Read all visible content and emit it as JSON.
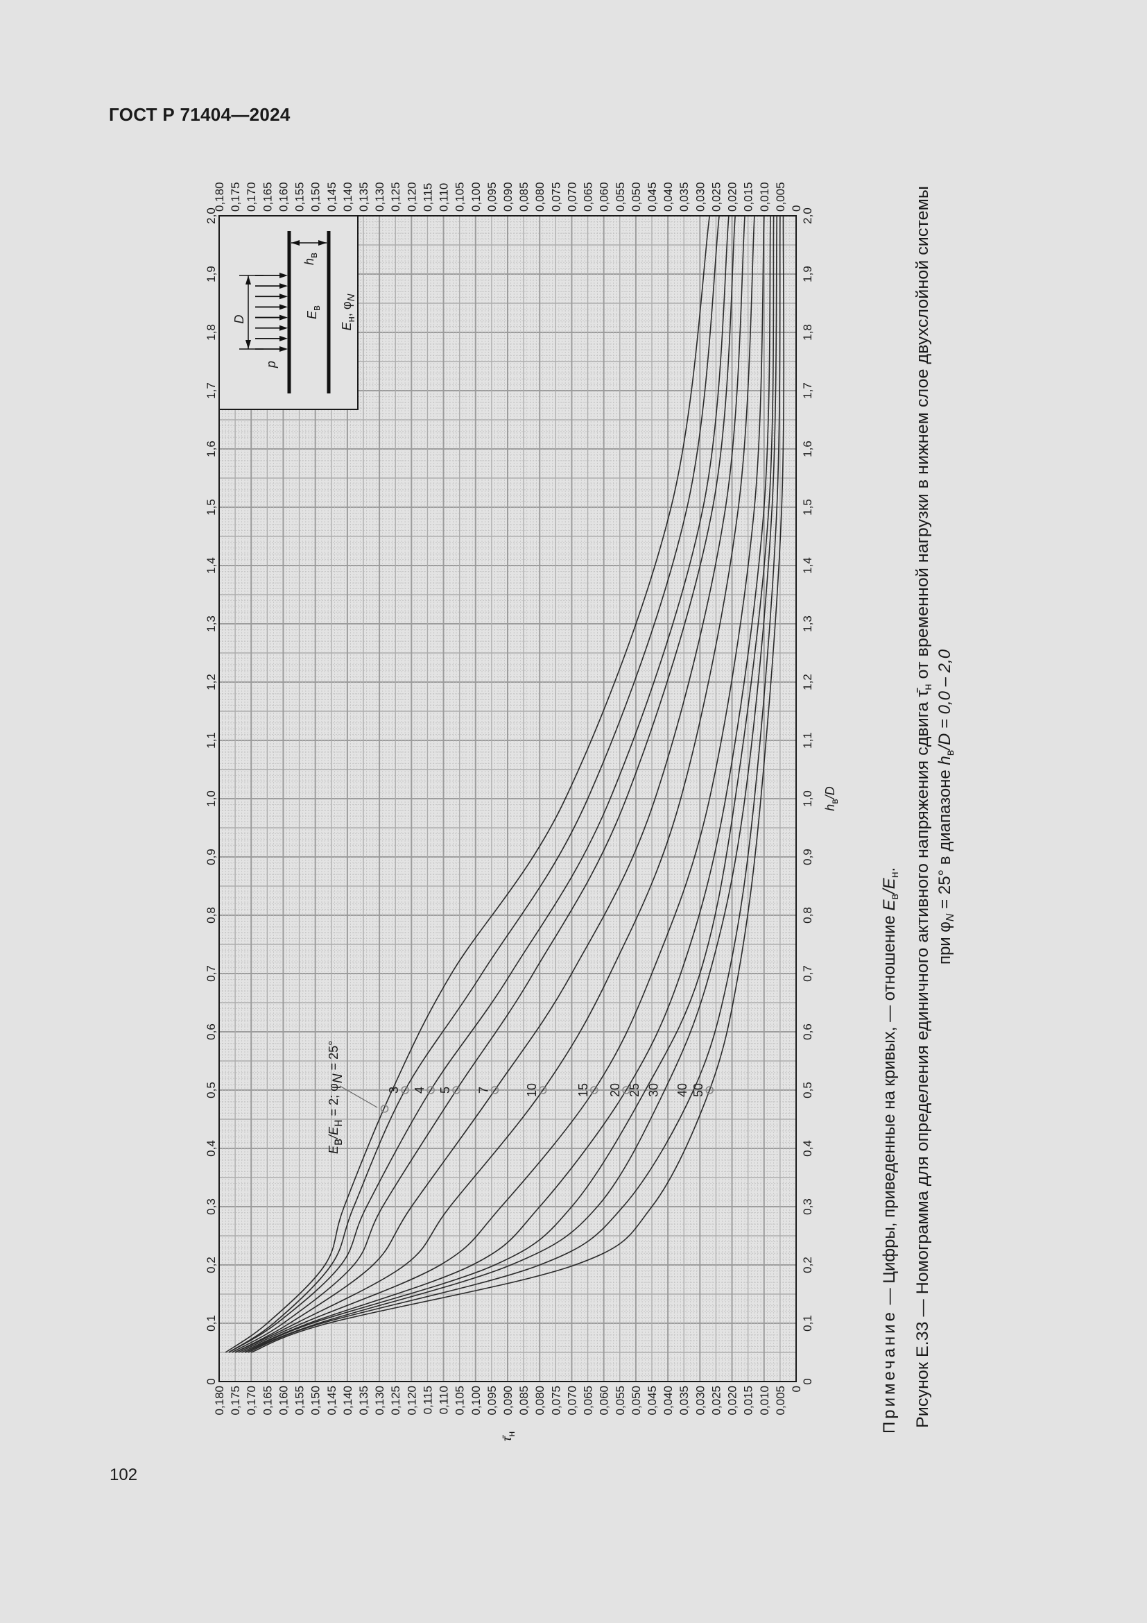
{
  "header": {
    "doc_id": "ГОСТ Р 71404—2024"
  },
  "page_number": "102",
  "colors": {
    "background": "#e3e3e3",
    "curve": "#2a2a2a",
    "grid_major": "#9c9c9c",
    "grid_minor": "#c2c2c2",
    "marker": "#888888"
  },
  "inset": {
    "p": "p",
    "D": "D",
    "h": "h",
    "h_sub": "в",
    "Eb": "E",
    "Eb_sub": "в",
    "En": "E",
    "En_sub": "н",
    "phi": ", φ",
    "phi_sub": "N"
  },
  "annotation": {
    "E1": "E",
    "E1_sub": "в",
    "E2": "/E",
    "E2_sub": "н",
    "eq": " = 2; φ",
    "phi_sub": "N",
    "tail": " = 25°"
  },
  "caption": {
    "note_label": "Примечание",
    "note_text": " — Цифры, приведенные на кривых, — отношение ",
    "note_E1": "E",
    "note_E1_sub": "в",
    "note_E2": "/E",
    "note_E2_sub": "н",
    "note_end": ".",
    "fig_a": "Рисунок Е.33 — Номограмма для определения единичного активного напряжения сдвига ",
    "fig_tau": "τ̄",
    "fig_tau_sub": "н",
    "fig_b": " от временной нагрузки в нижнем слое двухслойной системы",
    "fig_c1": "при φ",
    "fig_c1_sub": "N",
    "fig_c2": " = 25° в диапазоне ",
    "fig_c3": "h",
    "fig_c3_sub": "в",
    "fig_c4": "/D = 0,0 – 2,0"
  },
  "chart_data": {
    "type": "line",
    "title": "",
    "xlabel": "h_в/D",
    "xlabel_main": "h",
    "xlabel_sub": "в",
    "xlabel_tail": "/D",
    "ylabel": "τ̄_н",
    "ylabel_main": "τ̄",
    "ylabel_sub": "н",
    "xlim": [
      0,
      2.0
    ],
    "ylim": [
      0,
      0.18
    ],
    "grid": true,
    "x_ticks": [
      "0",
      "0,1",
      "0,2",
      "0,3",
      "0,4",
      "0,5",
      "0,6",
      "0,7",
      "0,8",
      "0,9",
      "1,0",
      "1,1",
      "1,2",
      "1,3",
      "1,4",
      "1,5",
      "1,6",
      "1,7",
      "1,8",
      "1,9",
      "2,0"
    ],
    "y_ticks": [
      "0",
      "0,005",
      "0,010",
      "0,015",
      "0,020",
      "0,025",
      "0,030",
      "0,035",
      "0,040",
      "0,045",
      "0,050",
      "0,055",
      "0,060",
      "0,065",
      "0,070",
      "0,075",
      "0,080",
      "0,085",
      "0,090",
      "0,095",
      "0,100",
      "0,105",
      "0,110",
      "0,115",
      "0,120",
      "0,125",
      "0,130",
      "0,135",
      "0,140",
      "0,145",
      "0,150",
      "0,155",
      "0,160",
      "0,165",
      "0,170",
      "0,175",
      "0,180"
    ],
    "x": [
      0.05,
      0.1,
      0.2,
      0.3,
      0.5,
      0.7,
      1.0,
      1.5,
      2.0
    ],
    "marker_x": 0.5,
    "series": [
      {
        "name": "2",
        "values": [
          0.178,
          0.165,
          0.147,
          0.141,
          0.126,
          0.1075,
          0.072,
          0.039,
          0.027
        ],
        "marker_x": 0.468
      },
      {
        "name": "3",
        "values": [
          0.177,
          0.163,
          0.145,
          0.138,
          0.122,
          0.098,
          0.065,
          0.034,
          0.024
        ]
      },
      {
        "name": "4",
        "values": [
          0.177,
          0.162,
          0.142,
          0.134,
          0.114,
          0.089,
          0.058,
          0.029,
          0.021
        ]
      },
      {
        "name": "5",
        "values": [
          0.176,
          0.16,
          0.138,
          0.129,
          0.106,
          0.082,
          0.053,
          0.026,
          0.019
        ]
      },
      {
        "name": "7",
        "values": [
          0.175,
          0.158,
          0.132,
          0.12,
          0.094,
          0.07,
          0.044,
          0.022,
          0.016
        ]
      },
      {
        "name": "10",
        "values": [
          0.175,
          0.156,
          0.122,
          0.108,
          0.079,
          0.058,
          0.036,
          0.018,
          0.013
        ]
      },
      {
        "name": "15",
        "values": [
          0.174,
          0.154,
          0.111,
          0.092,
          0.063,
          0.045,
          0.027,
          0.013,
          0.01
        ]
      },
      {
        "name": "20",
        "values": [
          0.173,
          0.152,
          0.101,
          0.08,
          0.053,
          0.036,
          0.022,
          0.01,
          0.008
        ]
      },
      {
        "name": "25",
        "values": [
          0.172,
          0.151,
          0.094,
          0.07,
          0.047,
          0.03,
          0.019,
          0.0085,
          0.007
        ],
        "no_marker": true
      },
      {
        "name": "30",
        "values": [
          0.172,
          0.149,
          0.089,
          0.062,
          0.041,
          0.027,
          0.016,
          0.0075,
          0.006
        ],
        "no_marker": true
      },
      {
        "name": "40",
        "values": [
          0.171,
          0.148,
          0.08,
          0.054,
          0.032,
          0.021,
          0.013,
          0.006,
          0.005
        ],
        "no_marker": true
      },
      {
        "name": "50",
        "values": [
          0.17,
          0.146,
          0.069,
          0.045,
          0.027,
          0.018,
          0.011,
          0.0045,
          0.004
        ]
      }
    ]
  }
}
